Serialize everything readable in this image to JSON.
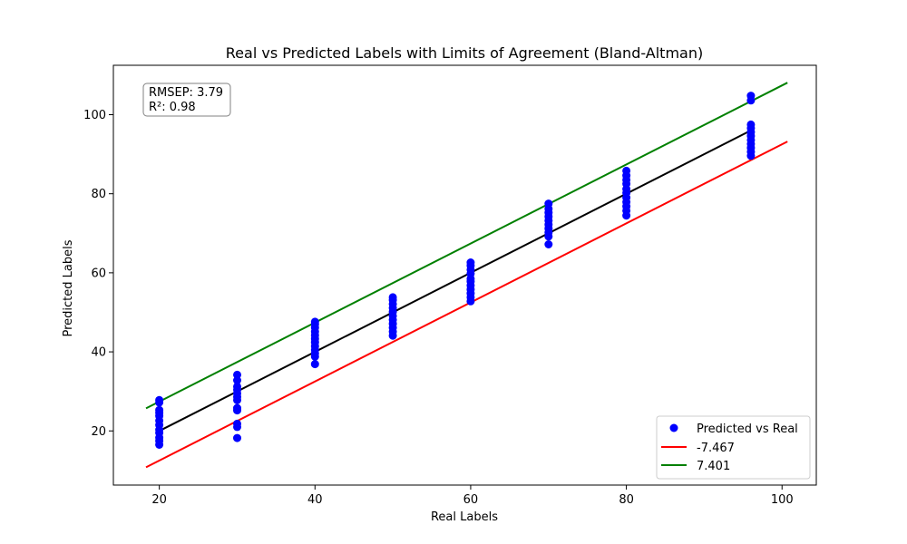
{
  "chart_data": {
    "type": "scatter",
    "title": "Real vs Predicted Labels with Limits of Agreement (Bland-Altman)",
    "xlabel": "Real Labels",
    "ylabel": "Predicted Labels",
    "xlim": [
      14.1,
      104.4
    ],
    "ylim": [
      6.3,
      112.5
    ],
    "xticks": [
      20,
      40,
      60,
      80,
      100
    ],
    "yticks": [
      20,
      40,
      60,
      80,
      100
    ],
    "grid": false,
    "legend_position": "lower-right",
    "annotation": {
      "lines": [
        "RMSEP: 3.79",
        "R²: 0.98"
      ]
    },
    "series": [
      {
        "name": "Predicted vs Real",
        "kind": "scatter",
        "color": "#0000ff",
        "points": [
          [
            20,
            16.5
          ],
          [
            20,
            17.5
          ],
          [
            20,
            18.3
          ],
          [
            20,
            19.5
          ],
          [
            20,
            20.3
          ],
          [
            20,
            21.5
          ],
          [
            20,
            22.6
          ],
          [
            20,
            23.8
          ],
          [
            20,
            24.6
          ],
          [
            20,
            25.3
          ],
          [
            20,
            27.2
          ],
          [
            20,
            27.8
          ],
          [
            30,
            18.2
          ],
          [
            30,
            21.0
          ],
          [
            30,
            21.8
          ],
          [
            30,
            25.2
          ],
          [
            30,
            25.8
          ],
          [
            30,
            27.8
          ],
          [
            30,
            28.6
          ],
          [
            30,
            29.5
          ],
          [
            30,
            30.4
          ],
          [
            30,
            31.2
          ],
          [
            30,
            32.8
          ],
          [
            30,
            34.2
          ],
          [
            40,
            36.9
          ],
          [
            40,
            38.8
          ],
          [
            40,
            39.6
          ],
          [
            40,
            40.5
          ],
          [
            40,
            41.4
          ],
          [
            40,
            42.4
          ],
          [
            40,
            43.3
          ],
          [
            40,
            44.2
          ],
          [
            40,
            45.1
          ],
          [
            40,
            46.1
          ],
          [
            40,
            47.0
          ],
          [
            40,
            47.6
          ],
          [
            50,
            44.1
          ],
          [
            50,
            45.1
          ],
          [
            50,
            46.1
          ],
          [
            50,
            47.1
          ],
          [
            50,
            48.1
          ],
          [
            50,
            49.1
          ],
          [
            50,
            50.1
          ],
          [
            50,
            51.1
          ],
          [
            50,
            52.1
          ],
          [
            50,
            53.1
          ],
          [
            50,
            53.8
          ],
          [
            60,
            52.8
          ],
          [
            60,
            53.8
          ],
          [
            60,
            54.8
          ],
          [
            60,
            55.8
          ],
          [
            60,
            56.8
          ],
          [
            60,
            57.8
          ],
          [
            60,
            58.5
          ],
          [
            60,
            59.8
          ],
          [
            60,
            60.8
          ],
          [
            60,
            61.8
          ],
          [
            60,
            62.6
          ],
          [
            70,
            67.2
          ],
          [
            70,
            69.2
          ],
          [
            70,
            70.2
          ],
          [
            70,
            71.2
          ],
          [
            70,
            72.2
          ],
          [
            70,
            73.2
          ],
          [
            70,
            74.2
          ],
          [
            70,
            75.2
          ],
          [
            70,
            76.2
          ],
          [
            70,
            77.5
          ],
          [
            80,
            74.5
          ],
          [
            80,
            75.7
          ],
          [
            80,
            76.8
          ],
          [
            80,
            77.9
          ],
          [
            80,
            79.0
          ],
          [
            80,
            80.2
          ],
          [
            80,
            81.2
          ],
          [
            80,
            82.5
          ],
          [
            80,
            83.5
          ],
          [
            80,
            84.6
          ],
          [
            80,
            85.8
          ],
          [
            96,
            89.6
          ],
          [
            96,
            90.6
          ],
          [
            96,
            91.6
          ],
          [
            96,
            92.6
          ],
          [
            96,
            93.6
          ],
          [
            96,
            94.6
          ],
          [
            96,
            95.6
          ],
          [
            96,
            96.6
          ],
          [
            96,
            97.5
          ],
          [
            96,
            103.6
          ],
          [
            96,
            104.8
          ]
        ]
      },
      {
        "name": "",
        "kind": "line",
        "color": "#000000",
        "points": [
          [
            20,
            20
          ],
          [
            96,
            96
          ]
        ]
      },
      {
        "name": "-7.467",
        "kind": "line",
        "color": "#ff0000",
        "points": [
          [
            18.3,
            10.8
          ],
          [
            100.7,
            93.2
          ]
        ]
      },
      {
        "name": "7.401",
        "kind": "line",
        "color": "#008000",
        "points": [
          [
            18.3,
            25.7
          ],
          [
            100.7,
            108.1
          ]
        ]
      }
    ]
  }
}
